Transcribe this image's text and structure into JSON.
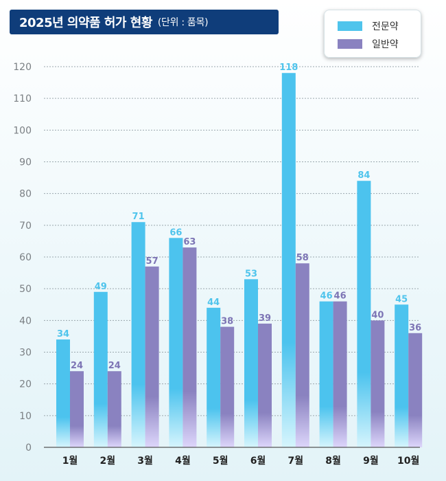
{
  "title": {
    "main": "2025년 의약품 허가 현황",
    "unit": "(단위 : 품목)"
  },
  "colors": {
    "title_bg": "#0f3d7a",
    "series_0": "#4fc4ec",
    "series_1": "#8a82c0",
    "label_0": "#4fc4ec",
    "label_1": "#7d75b5"
  },
  "chart_data": {
    "type": "bar",
    "title": "2025년 의약품 허가 현황",
    "unit": "(단위 : 품목)",
    "categories": [
      "1월",
      "2월",
      "3월",
      "4월",
      "5월",
      "6월",
      "7월",
      "8월",
      "9월",
      "10월"
    ],
    "series": [
      {
        "name": "전문약",
        "values": [
          34,
          49,
          71,
          66,
          44,
          53,
          118,
          46,
          84,
          45
        ]
      },
      {
        "name": "일반약",
        "values": [
          24,
          24,
          57,
          63,
          38,
          39,
          58,
          46,
          40,
          36
        ]
      }
    ],
    "ylim": [
      0,
      120
    ],
    "yticks": [
      0,
      10,
      20,
      30,
      40,
      50,
      60,
      70,
      80,
      90,
      100,
      110,
      120
    ],
    "grid": true,
    "legend_position": "top-right",
    "data_labels": true
  }
}
